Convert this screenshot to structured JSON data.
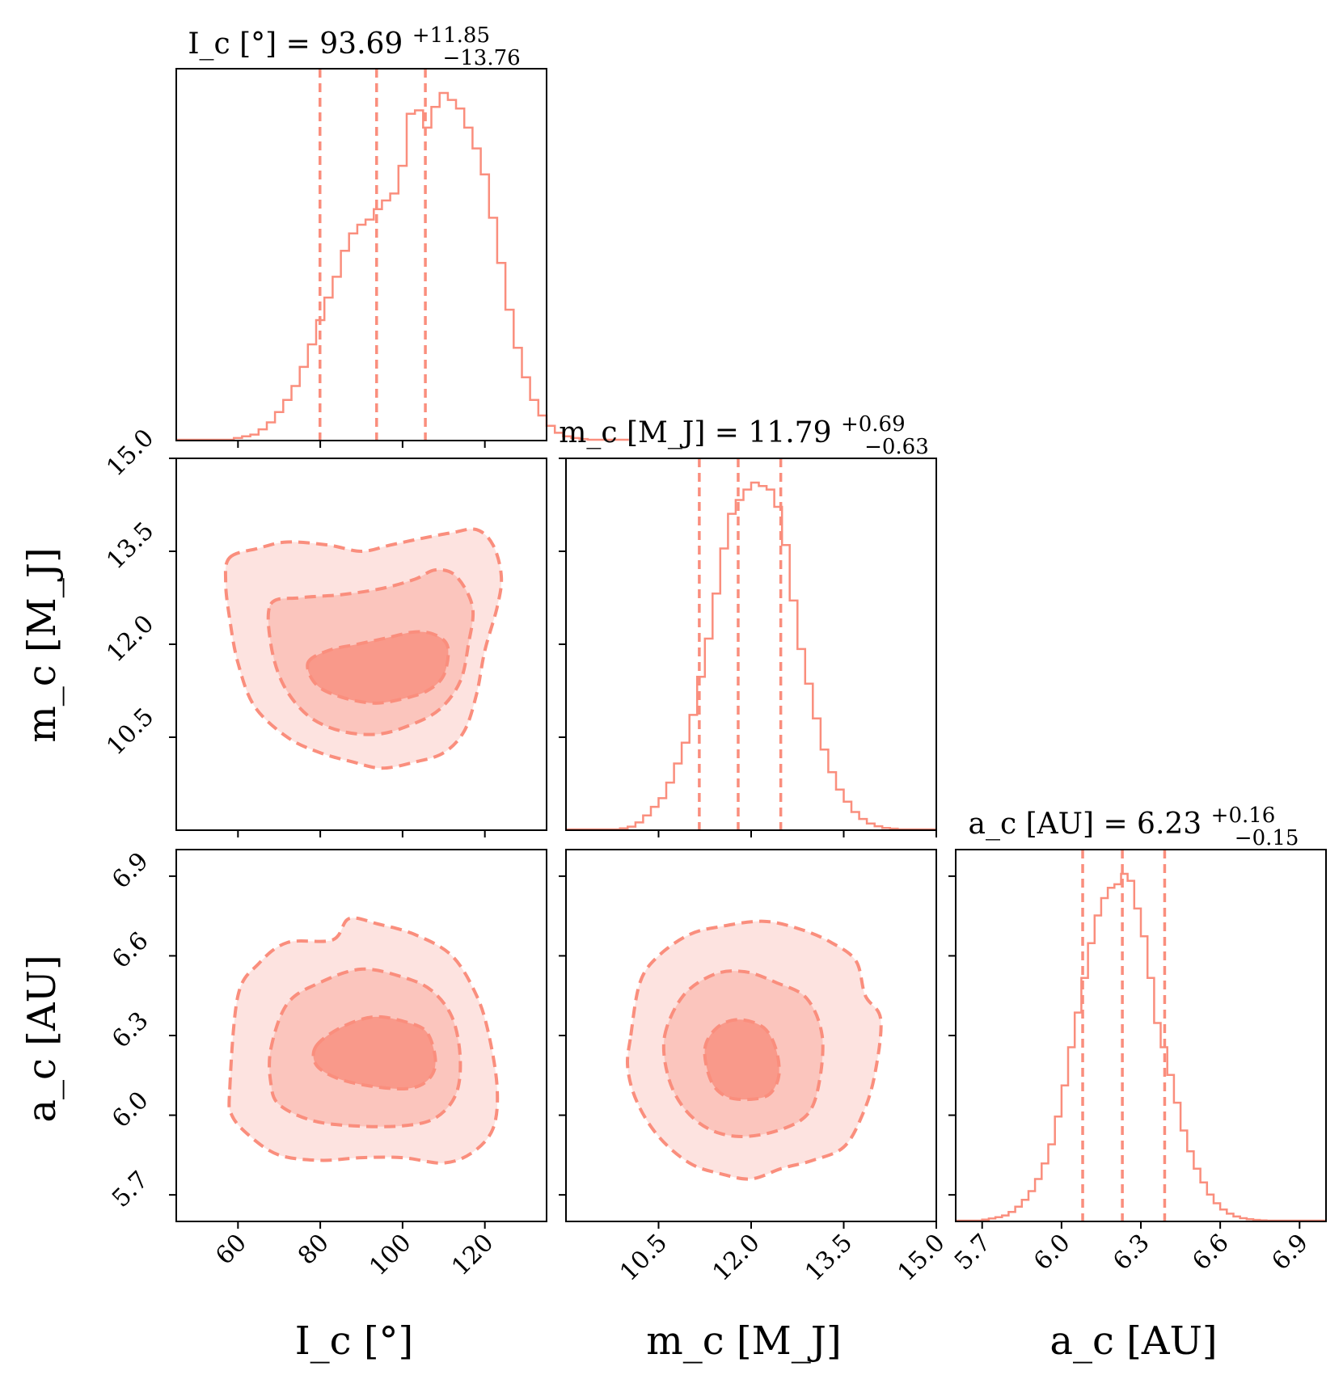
{
  "chart_data": {
    "type": "corner",
    "color": "#fa8e7d",
    "fills": [
      "#fde3e0",
      "#fbc5bd",
      "#f9998a"
    ],
    "parameters": [
      {
        "key": "I",
        "axis_label": "I_c [°]",
        "title": {
          "main": "I_c [°] = 93.69",
          "plus": "+11.85",
          "minus": "−13.76"
        },
        "range": [
          45,
          135
        ],
        "ticks": [
          "60",
          "80",
          "100",
          "120"
        ],
        "tick_values": [
          60,
          80,
          100,
          120
        ],
        "median": 93.69,
        "quantiles": [
          79.93,
          93.69,
          105.54
        ],
        "hist": {
          "edges_from": 45,
          "bin_width": 2,
          "values": [
            0,
            0,
            0,
            0,
            0,
            0,
            0,
            0.005,
            0.01,
            0.015,
            0.03,
            0.05,
            0.08,
            0.115,
            0.155,
            0.21,
            0.275,
            0.345,
            0.41,
            0.47,
            0.545,
            0.595,
            0.62,
            0.635,
            0.665,
            0.69,
            0.71,
            0.79,
            0.94,
            0.95,
            0.9,
            0.96,
            1.0,
            0.98,
            0.955,
            0.9,
            0.84,
            0.765,
            0.64,
            0.51,
            0.375,
            0.265,
            0.18,
            0.115,
            0.07,
            0.04,
            0.02,
            0.01,
            0.005,
            0.002,
            0,
            0,
            0,
            0,
            0
          ]
        }
      },
      {
        "key": "m",
        "axis_label": "m_c [M_J]",
        "title": {
          "main": "m_c [M_J] = 11.79",
          "plus": "+0.69",
          "minus": "−0.63"
        },
        "range": [
          9,
          15
        ],
        "ticks": [
          "10.5",
          "12.0",
          "13.5",
          "15.0"
        ],
        "tick_values": [
          10.5,
          12.0,
          13.5,
          15.0
        ],
        "median": 11.79,
        "quantiles": [
          11.16,
          11.79,
          12.48
        ],
        "hist": {
          "edges_from": 9,
          "bin_width": 0.125,
          "values": [
            0,
            0,
            0,
            0,
            0,
            0,
            0,
            0.003,
            0.008,
            0.02,
            0.04,
            0.065,
            0.09,
            0.135,
            0.19,
            0.25,
            0.33,
            0.44,
            0.55,
            0.68,
            0.81,
            0.91,
            0.95,
            0.98,
            1.0,
            0.99,
            0.98,
            0.93,
            0.82,
            0.66,
            0.52,
            0.42,
            0.32,
            0.23,
            0.165,
            0.115,
            0.08,
            0.05,
            0.03,
            0.017,
            0.009,
            0.004,
            0.002,
            0,
            0,
            0,
            0,
            0
          ]
        }
      },
      {
        "key": "a",
        "axis_label": "a_c [AU]",
        "title": {
          "main": "a_c [AU] = 6.23",
          "plus": "+0.16",
          "minus": "−0.15"
        },
        "range": [
          5.6,
          7.0
        ],
        "ticks": [
          "5.7",
          "6.0",
          "6.3",
          "6.6",
          "6.9"
        ],
        "tick_values": [
          5.7,
          6.0,
          6.3,
          6.6,
          6.9
        ],
        "median": 6.23,
        "quantiles": [
          6.08,
          6.23,
          6.39
        ],
        "hist": {
          "edges_from": 5.6,
          "bin_width": 0.025,
          "values": [
            0,
            0,
            0,
            0,
            0.003,
            0.006,
            0.01,
            0.015,
            0.025,
            0.04,
            0.06,
            0.085,
            0.12,
            0.165,
            0.22,
            0.3,
            0.39,
            0.5,
            0.6,
            0.7,
            0.8,
            0.88,
            0.93,
            0.96,
            0.97,
            1.0,
            0.98,
            0.9,
            0.82,
            0.7,
            0.57,
            0.5,
            0.42,
            0.34,
            0.26,
            0.2,
            0.15,
            0.11,
            0.075,
            0.05,
            0.032,
            0.02,
            0.012,
            0.007,
            0.004,
            0.002,
            0.001,
            0,
            0,
            0,
            0,
            0,
            0,
            0,
            0,
            0
          ]
        }
      }
    ],
    "contour_levels": [
      "outer",
      "middle",
      "inner"
    ],
    "contours": [
      {
        "pair": [
          "I",
          "m"
        ],
        "levels": {
          "outer": [
            [
              58,
              13.4
            ],
            [
              65,
              13.55
            ],
            [
              72,
              13.65
            ],
            [
              82,
              13.6
            ],
            [
              90,
              13.5
            ],
            [
              97,
              13.6
            ],
            [
              104,
              13.7
            ],
            [
              112,
              13.8
            ],
            [
              118,
              13.85
            ],
            [
              122,
              13.6
            ],
            [
              124,
              13.1
            ],
            [
              123,
              12.6
            ],
            [
              120,
              11.9
            ],
            [
              118,
              11.2
            ],
            [
              115,
              10.6
            ],
            [
              110,
              10.25
            ],
            [
              103,
              10.1
            ],
            [
              95,
              10.0
            ],
            [
              88,
              10.1
            ],
            [
              80,
              10.25
            ],
            [
              72,
              10.5
            ],
            [
              64,
              11.0
            ],
            [
              60,
              11.7
            ],
            [
              58,
              12.4
            ],
            [
              57,
              13.0
            ]
          ],
          "middle": [
            [
              68,
              12.65
            ],
            [
              75,
              12.75
            ],
            [
              85,
              12.8
            ],
            [
              95,
              12.9
            ],
            [
              103,
              13.05
            ],
            [
              108,
              13.2
            ],
            [
              113,
              13.1
            ],
            [
              117,
              12.6
            ],
            [
              116,
              12.0
            ],
            [
              114,
              11.4
            ],
            [
              109,
              10.95
            ],
            [
              102,
              10.7
            ],
            [
              94,
              10.55
            ],
            [
              85,
              10.6
            ],
            [
              77,
              10.85
            ],
            [
              71,
              11.35
            ],
            [
              68,
              12.0
            ]
          ],
          "inner": [
            [
              77,
              11.7
            ],
            [
              82,
              11.9
            ],
            [
              89,
              12.0
            ],
            [
              96,
              12.1
            ],
            [
              103,
              12.2
            ],
            [
              108,
              12.15
            ],
            [
              111,
              11.95
            ],
            [
              110,
              11.5
            ],
            [
              106,
              11.25
            ],
            [
              100,
              11.12
            ],
            [
              93,
              11.05
            ],
            [
              85,
              11.15
            ],
            [
              79,
              11.35
            ]
          ]
        }
      },
      {
        "pair": [
          "I",
          "a"
        ],
        "levels": {
          "outer": [
            [
              58,
              6.1
            ],
            [
              60,
              6.45
            ],
            [
              65,
              6.57
            ],
            [
              72,
              6.65
            ],
            [
              83,
              6.66
            ],
            [
              87,
              6.74
            ],
            [
              94,
              6.72
            ],
            [
              103,
              6.68
            ],
            [
              112,
              6.6
            ],
            [
              118,
              6.45
            ],
            [
              121,
              6.3
            ],
            [
              123,
              6.1
            ],
            [
              122,
              5.95
            ],
            [
              117,
              5.86
            ],
            [
              110,
              5.82
            ],
            [
              100,
              5.84
            ],
            [
              90,
              5.84
            ],
            [
              80,
              5.83
            ],
            [
              70,
              5.85
            ],
            [
              63,
              5.92
            ],
            [
              58.5,
              6.0
            ]
          ],
          "middle": [
            [
              68,
              6.25
            ],
            [
              72,
              6.42
            ],
            [
              80,
              6.5
            ],
            [
              90,
              6.55
            ],
            [
              100,
              6.52
            ],
            [
              107,
              6.47
            ],
            [
              112,
              6.37
            ],
            [
              114,
              6.22
            ],
            [
              113,
              6.08
            ],
            [
              108,
              5.99
            ],
            [
              100,
              5.96
            ],
            [
              88,
              5.96
            ],
            [
              78,
              5.98
            ],
            [
              70,
              6.04
            ],
            [
              68,
              6.12
            ]
          ],
          "inner": [
            [
              79,
              6.26
            ],
            [
              85,
              6.33
            ],
            [
              93,
              6.37
            ],
            [
              101,
              6.35
            ],
            [
              106,
              6.31
            ],
            [
              108,
              6.2
            ],
            [
              106,
              6.13
            ],
            [
              101,
              6.1
            ],
            [
              92,
              6.11
            ],
            [
              84,
              6.14
            ],
            [
              79,
              6.19
            ]
          ]
        }
      },
      {
        "pair": [
          "m",
          "a"
        ],
        "levels": {
          "outer": [
            [
              10.05,
              6.3
            ],
            [
              10.2,
              6.5
            ],
            [
              10.5,
              6.6
            ],
            [
              11.0,
              6.68
            ],
            [
              11.5,
              6.71
            ],
            [
              12.2,
              6.73
            ],
            [
              12.8,
              6.7
            ],
            [
              13.3,
              6.65
            ],
            [
              13.7,
              6.58
            ],
            [
              13.85,
              6.45
            ],
            [
              14.1,
              6.36
            ],
            [
              14.0,
              6.15
            ],
            [
              13.8,
              6.0
            ],
            [
              13.5,
              5.88
            ],
            [
              13.0,
              5.83
            ],
            [
              12.5,
              5.8
            ],
            [
              12.0,
              5.76
            ],
            [
              11.5,
              5.78
            ],
            [
              11.0,
              5.82
            ],
            [
              10.5,
              5.92
            ],
            [
              10.15,
              6.05
            ],
            [
              10.0,
              6.18
            ]
          ],
          "middle": [
            [
              10.6,
              6.3
            ],
            [
              10.9,
              6.45
            ],
            [
              11.4,
              6.53
            ],
            [
              11.9,
              6.54
            ],
            [
              12.4,
              6.5
            ],
            [
              12.9,
              6.44
            ],
            [
              13.15,
              6.3
            ],
            [
              13.1,
              6.12
            ],
            [
              12.9,
              6.0
            ],
            [
              12.4,
              5.94
            ],
            [
              11.8,
              5.92
            ],
            [
              11.3,
              5.95
            ],
            [
              10.9,
              6.03
            ],
            [
              10.65,
              6.15
            ]
          ],
          "inner": [
            [
              11.25,
              6.25
            ],
            [
              11.45,
              6.33
            ],
            [
              11.8,
              6.36
            ],
            [
              12.2,
              6.33
            ],
            [
              12.4,
              6.25
            ],
            [
              12.45,
              6.15
            ],
            [
              12.3,
              6.08
            ],
            [
              12.0,
              6.06
            ],
            [
              11.6,
              6.07
            ],
            [
              11.35,
              6.13
            ]
          ]
        }
      }
    ]
  }
}
